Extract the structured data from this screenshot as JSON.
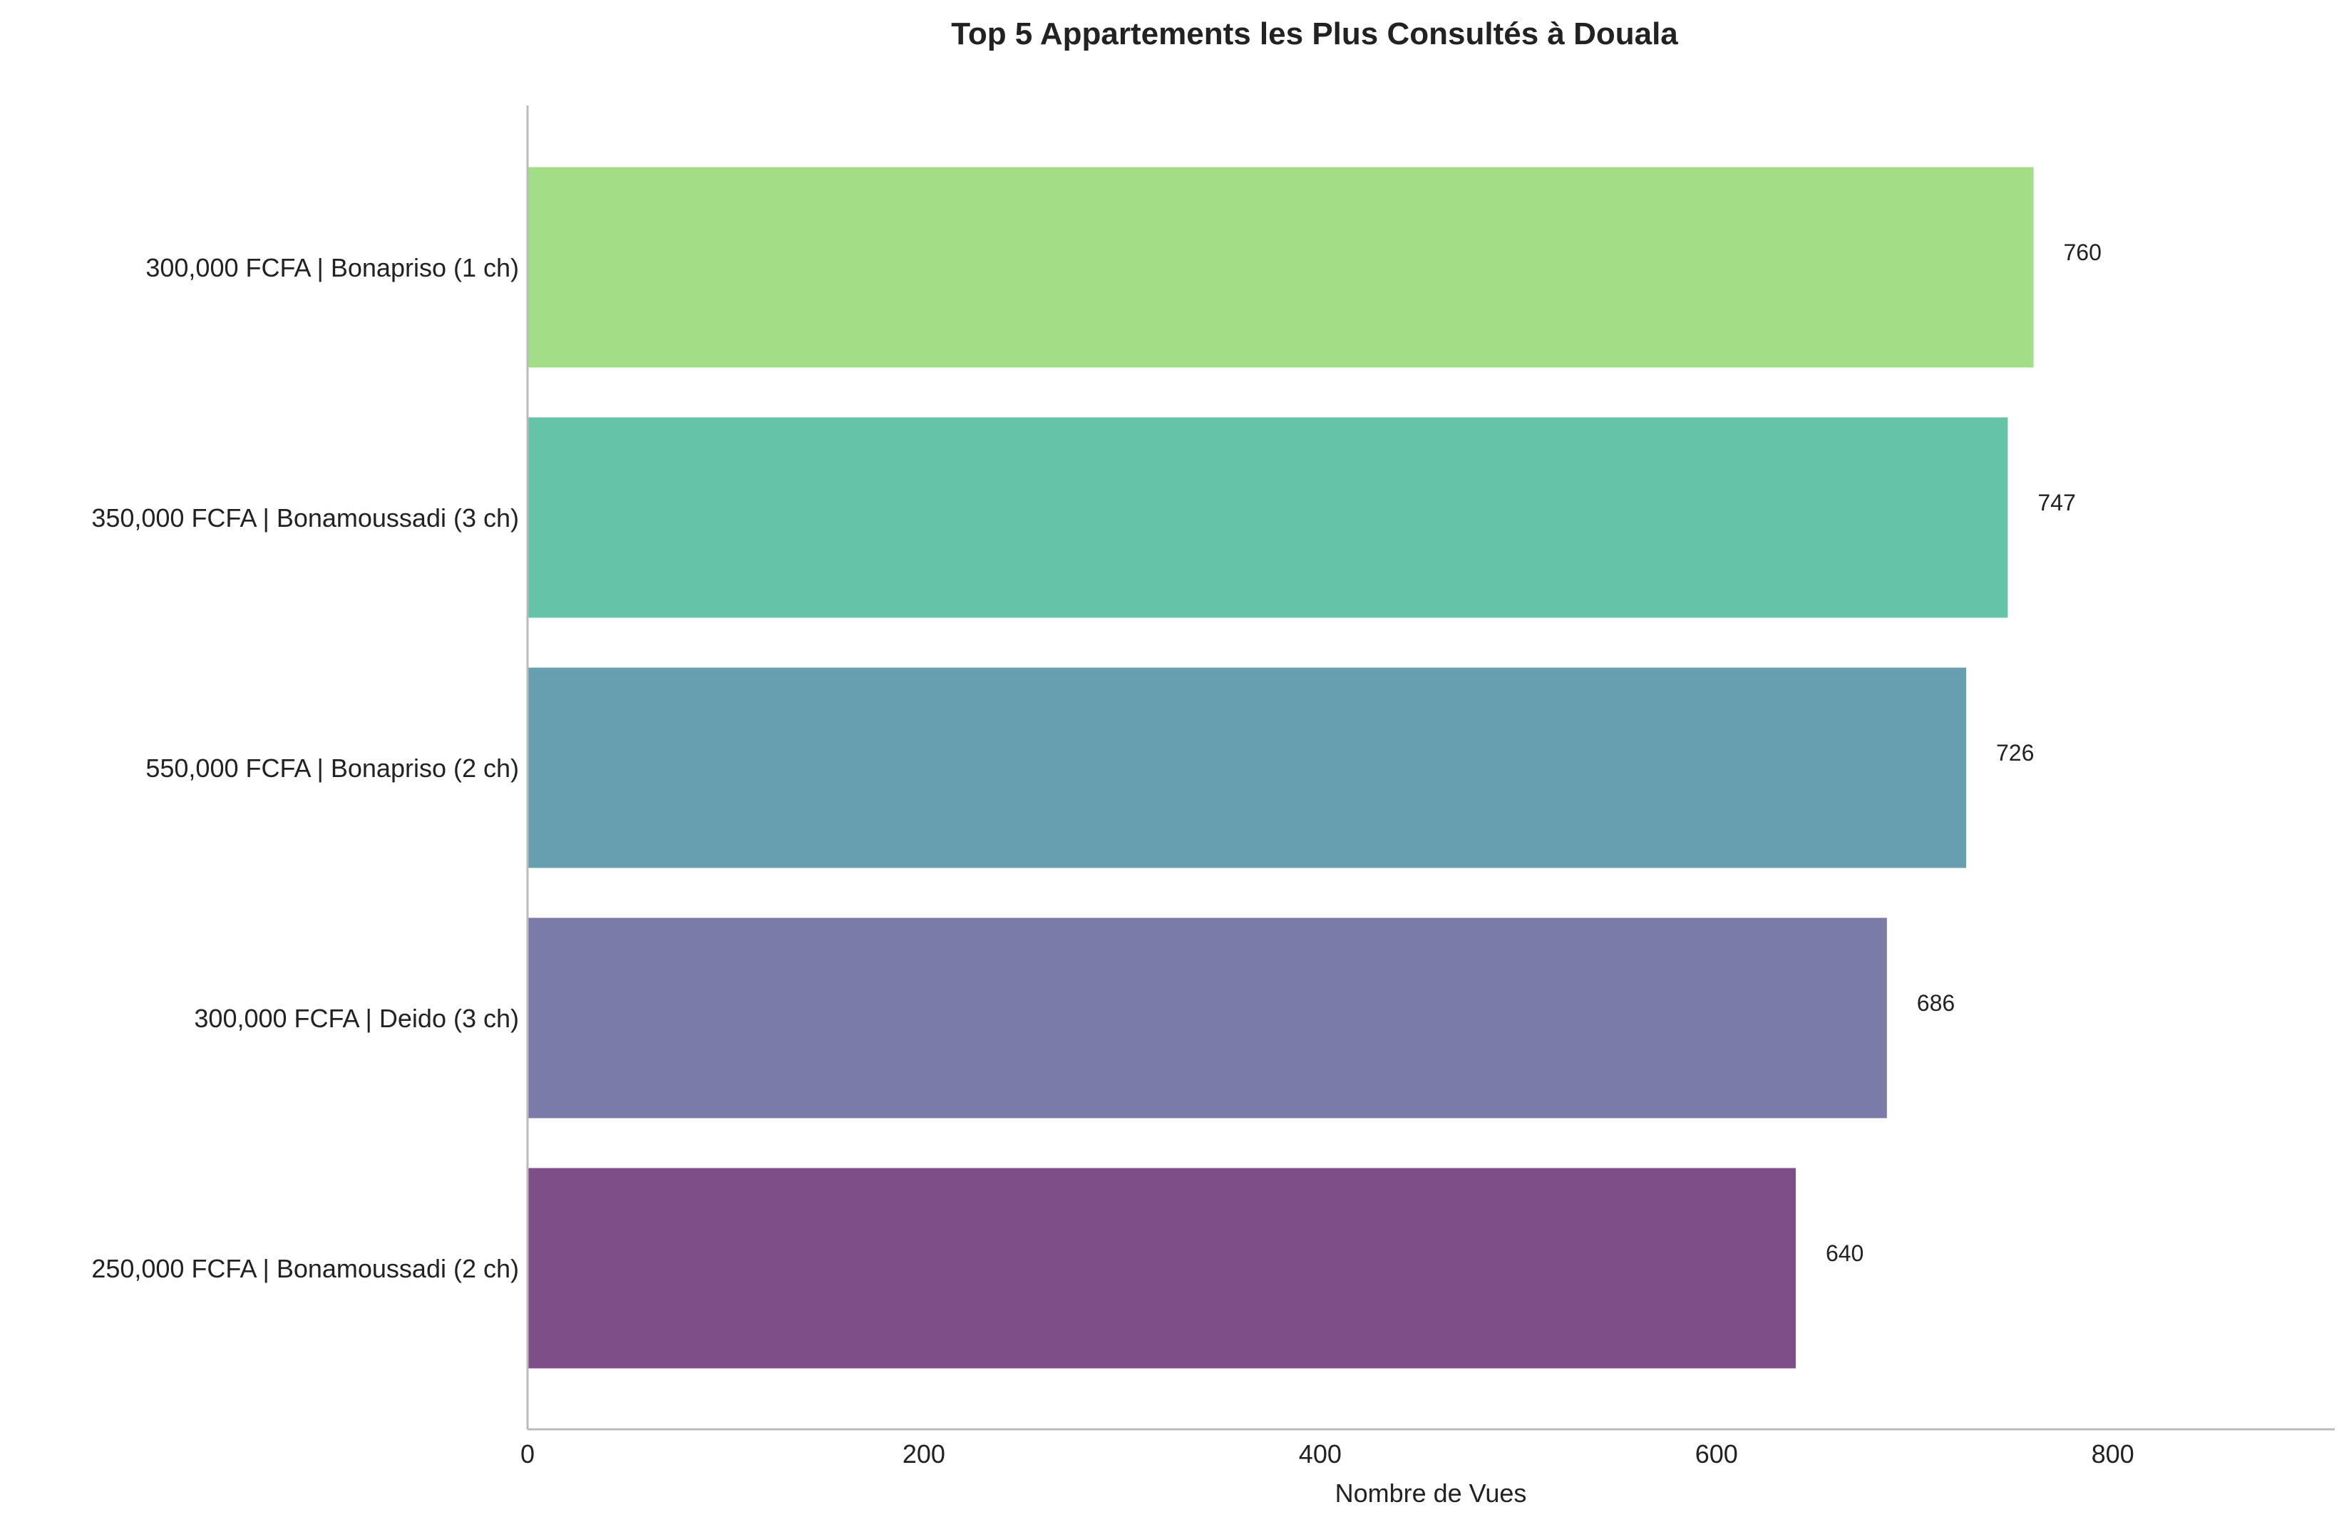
{
  "chart_data": {
    "type": "bar",
    "orientation": "horizontal",
    "title": "Top 5 Appartements les Plus Consultés à Douala",
    "xlabel": "Nombre de Vues",
    "ylabel": "",
    "categories": [
      "300,000 FCFA | Bonapriso (1 ch)",
      "350,000 FCFA | Bonamoussadi (3 ch)",
      "550,000 FCFA | Bonapriso (2 ch)",
      "300,000 FCFA | Deido (3 ch)",
      "250,000 FCFA | Bonamoussadi (2 ch)"
    ],
    "values": [
      760,
      747,
      726,
      686,
      640
    ],
    "data_labels": [
      "760",
      "747",
      "726",
      "686",
      "640"
    ],
    "colors": [
      "#a3dd86",
      "#65c3a8",
      "#689fb0",
      "#7b7ba8",
      "#7e4e88"
    ],
    "xlim": [
      0,
      912
    ],
    "xticks": [
      0,
      200,
      400,
      600,
      800
    ],
    "xtick_labels": [
      "0",
      "200",
      "400",
      "600",
      "800"
    ],
    "grid": false,
    "legend": "none"
  }
}
